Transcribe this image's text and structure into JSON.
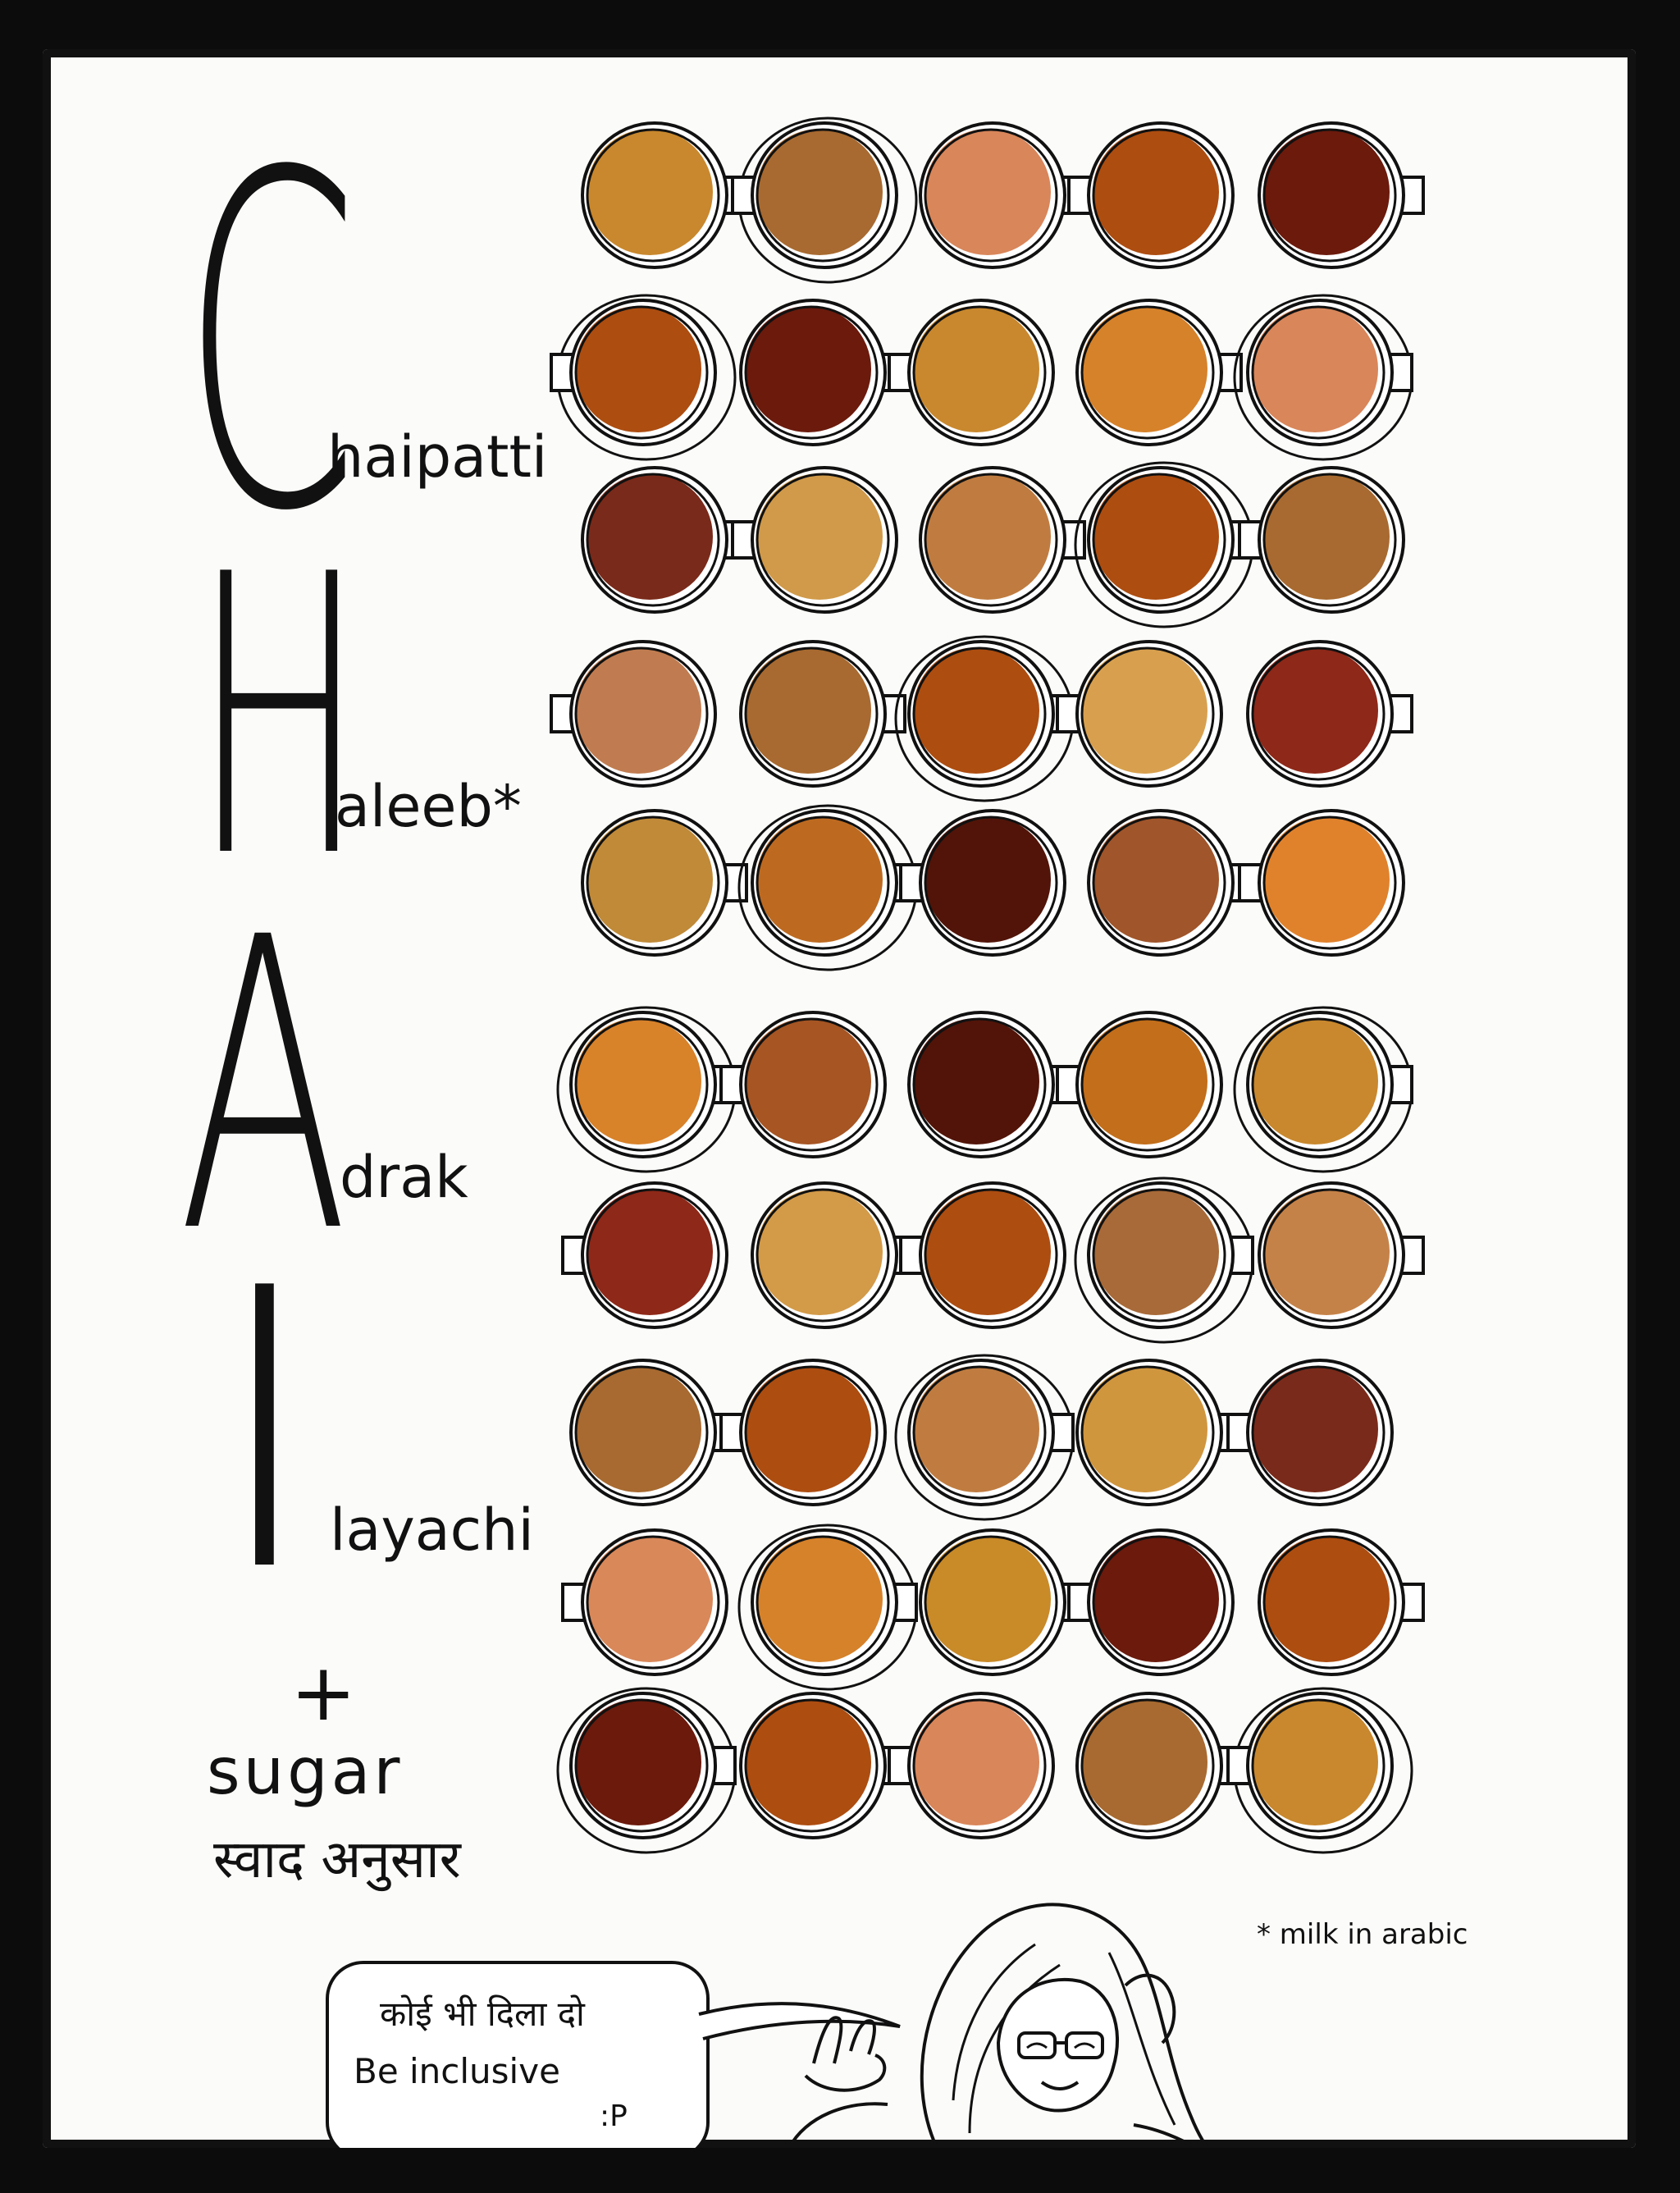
{
  "acrostic": [
    {
      "letter": "C",
      "rest": "haipatti"
    },
    {
      "letter": "H",
      "rest": "aleeb*"
    },
    {
      "letter": "A",
      "rest": "drak"
    },
    {
      "letter": "I",
      "rest": "layachi"
    }
  ],
  "extras": {
    "plus": "+",
    "sugar": "sugar",
    "taste": "स्वाद अनुसार"
  },
  "footnote": "* milk in arabic",
  "speech_bubble": {
    "line1": "कोई भी दिला दो",
    "line2": "Be inclusive",
    "line3": ":P"
  },
  "colors": {
    "background": "#0c0c0c",
    "paper": "#fbfbf9",
    "ink": "#111111"
  },
  "cup_rows": [
    [
      "#c9882d",
      "#a86a30",
      "#d9865a",
      "#ad4d10",
      "#6b1a0c"
    ],
    [
      "#ad4d10",
      "#6b1a0c",
      "#c9882d",
      "#d6822a",
      "#d9865a"
    ],
    [
      "#7a2a1a",
      "#d09a4a",
      "#c07c40",
      "#ad4d10",
      "#a86a30"
    ],
    [
      "#c07c50",
      "#a86a30",
      "#ad4d10",
      "#d8a04e",
      "#8e2818"
    ],
    [
      "#c08a38",
      "#bd6a20",
      "#521408",
      "#a0552a",
      "#e0822c"
    ],
    [
      "#d8822a",
      "#a65523",
      "#521408",
      "#c26e1a",
      "#c9882d"
    ],
    [
      "#8e2818",
      "#d39a48",
      "#ad4d10",
      "#a86a38",
      "#c58248"
    ],
    [
      "#a86a30",
      "#ad4d10",
      "#c07c40",
      "#d0963e",
      "#7a2a1a"
    ],
    [
      "#d9885a",
      "#d6822a",
      "#c98a28",
      "#6b1a0c",
      "#ad4d10"
    ],
    [
      "#6b1a0c",
      "#ad4d10",
      "#d9865a",
      "#a86a30",
      "#c9882d"
    ]
  ]
}
